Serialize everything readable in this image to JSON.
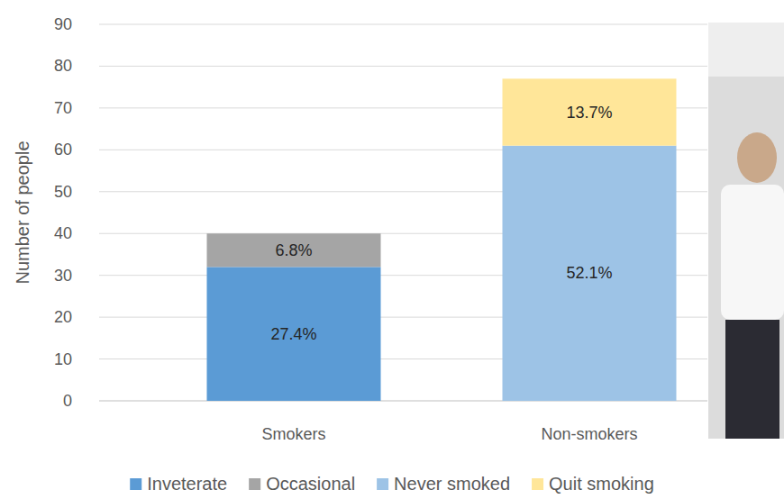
{
  "chart_data": {
    "type": "bar",
    "stacked": true,
    "y_label": "Number of people",
    "categories": [
      "Smokers",
      "Non-smokers"
    ],
    "series": [
      {
        "name": "Inveterate",
        "color": "#5b9bd5",
        "values": [
          32,
          null
        ],
        "percent_labels": [
          "27.4%",
          null
        ]
      },
      {
        "name": "Occasional",
        "color": "#a5a5a5",
        "values": [
          8,
          null
        ],
        "percent_labels": [
          "6.8%",
          null
        ]
      },
      {
        "name": "Never smoked",
        "color": "#9dc3e6",
        "values": [
          null,
          61
        ],
        "percent_labels": [
          null,
          "52.1%"
        ]
      },
      {
        "name": "Quit smoking",
        "color": "#ffe699",
        "values": [
          null,
          16
        ],
        "percent_labels": [
          null,
          "13.7%"
        ]
      }
    ],
    "ylim": [
      0,
      90
    ],
    "yticks": [
      0,
      10,
      20,
      30,
      40,
      50,
      60,
      70,
      80,
      90
    ],
    "grid": true,
    "legend": "bottom"
  }
}
